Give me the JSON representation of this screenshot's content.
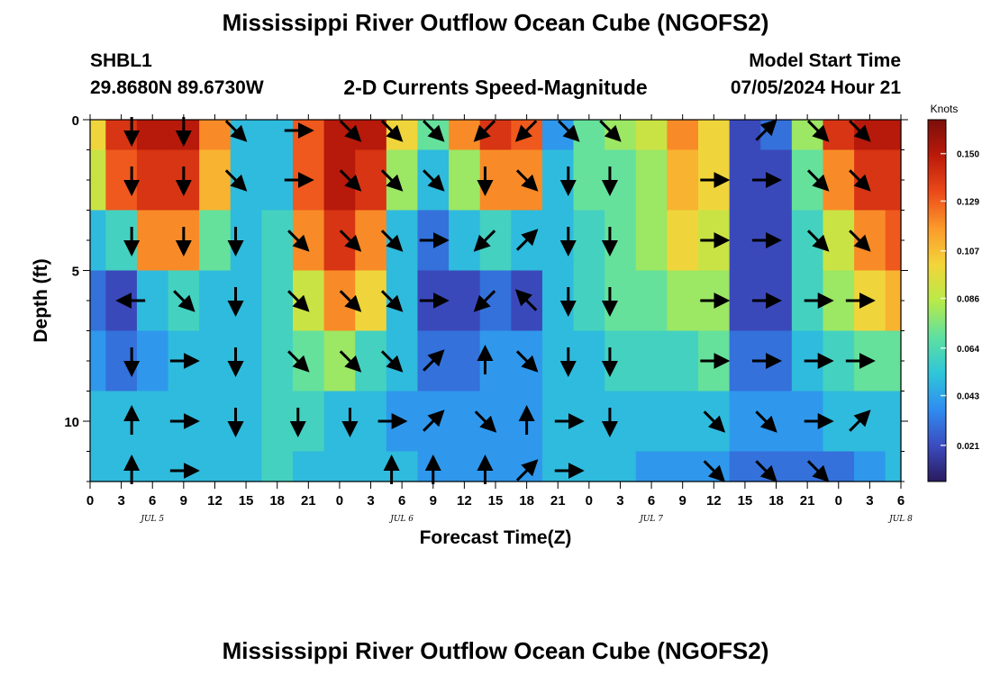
{
  "page": {
    "title": "Mississippi River Outflow Ocean Cube (NGOFS2)",
    "station_id": "SHBL1",
    "station_coords": "29.8680N  89.6730W",
    "subtitle": "2-D Currents Speed-Magnitude",
    "model_start_label": "Model Start Time",
    "model_start_value": "07/05/2024 Hour 21",
    "footer_title": "Mississippi River Outflow Ocean Cube (NGOFS2)"
  },
  "chart_data": {
    "type": "heatmap",
    "title": "2-D Currents Speed-Magnitude",
    "xlabel": "Forecast Time(Z)",
    "ylabel": "Depth (ft)",
    "colorbar_label": "Knots",
    "x_tick_labels": [
      "0",
      "3",
      "6",
      "9",
      "12",
      "15",
      "18",
      "21",
      "0",
      "3",
      "6",
      "9",
      "12",
      "15",
      "18",
      "21",
      "0",
      "3",
      "6",
      "9",
      "12",
      "15",
      "18",
      "21",
      "0",
      "3",
      "6"
    ],
    "date_labels": [
      "JUL 5",
      "JUL 6",
      "JUL 7",
      "JUL 8"
    ],
    "date_label_hours": [
      6,
      30,
      54,
      78
    ],
    "x_range_hours": [
      0,
      78
    ],
    "y_ticks": [
      0,
      5,
      10
    ],
    "y_range": [
      0,
      12
    ],
    "colorbar_ticks": [
      "0.021",
      "0.043",
      "0.064",
      "0.086",
      "0.107",
      "0.129",
      "0.150"
    ],
    "colorbar_range": [
      0.005,
      0.165
    ],
    "colors": [
      "#2a1a5e",
      "#3b4cc0",
      "#2f8df0",
      "#2fc6d8",
      "#5fe0a0",
      "#b8ea48",
      "#f3d43a",
      "#fb9a2a",
      "#ec4a1a",
      "#bb1a0a",
      "#7a0f0a"
    ],
    "depth_levels_ft": [
      0,
      2,
      4,
      6,
      8,
      10,
      12
    ],
    "time_hours": [
      0,
      3,
      6,
      9,
      12,
      15,
      18,
      21,
      24,
      27,
      30,
      33,
      36,
      39,
      42,
      45,
      48,
      51,
      54,
      57,
      60,
      63,
      66,
      69,
      72,
      75,
      78
    ],
    "speed_knots": [
      [
        0.1,
        0.14,
        0.15,
        0.15,
        0.12,
        0.05,
        0.05,
        0.13,
        0.15,
        0.15,
        0.1,
        0.07,
        0.12,
        0.14,
        0.13,
        0.04,
        0.07,
        0.08,
        0.09,
        0.12,
        0.1,
        0.02,
        0.03,
        0.08,
        0.14,
        0.15,
        0.15
      ],
      [
        0.09,
        0.13,
        0.14,
        0.14,
        0.11,
        0.05,
        0.05,
        0.13,
        0.15,
        0.14,
        0.08,
        0.05,
        0.08,
        0.12,
        0.12,
        0.05,
        0.07,
        0.07,
        0.08,
        0.11,
        0.1,
        0.02,
        0.02,
        0.07,
        0.12,
        0.14,
        0.14
      ],
      [
        0.05,
        0.06,
        0.12,
        0.12,
        0.07,
        0.05,
        0.06,
        0.12,
        0.14,
        0.12,
        0.05,
        0.03,
        0.05,
        0.06,
        0.05,
        0.05,
        0.06,
        0.07,
        0.08,
        0.1,
        0.09,
        0.02,
        0.02,
        0.06,
        0.09,
        0.12,
        0.13
      ],
      [
        0.03,
        0.02,
        0.05,
        0.06,
        0.05,
        0.05,
        0.06,
        0.09,
        0.12,
        0.1,
        0.05,
        0.02,
        0.02,
        0.03,
        0.02,
        0.05,
        0.06,
        0.07,
        0.07,
        0.08,
        0.08,
        0.02,
        0.02,
        0.06,
        0.08,
        0.1,
        0.11
      ],
      [
        0.04,
        0.03,
        0.04,
        0.05,
        0.05,
        0.05,
        0.06,
        0.07,
        0.08,
        0.06,
        0.05,
        0.03,
        0.03,
        0.04,
        0.04,
        0.05,
        0.05,
        0.06,
        0.06,
        0.06,
        0.07,
        0.03,
        0.03,
        0.05,
        0.06,
        0.07,
        0.07
      ],
      [
        0.05,
        0.05,
        0.05,
        0.05,
        0.05,
        0.05,
        0.06,
        0.06,
        0.05,
        0.05,
        0.04,
        0.04,
        0.04,
        0.04,
        0.04,
        0.05,
        0.05,
        0.05,
        0.05,
        0.05,
        0.05,
        0.04,
        0.04,
        0.04,
        0.05,
        0.05,
        0.05
      ],
      [
        0.05,
        0.05,
        0.05,
        0.05,
        0.05,
        0.05,
        0.06,
        0.05,
        0.05,
        0.05,
        0.05,
        0.04,
        0.04,
        0.04,
        0.04,
        0.05,
        0.05,
        0.05,
        0.04,
        0.04,
        0.04,
        0.03,
        0.03,
        0.03,
        0.03,
        0.04,
        0.05
      ]
    ],
    "vectors": [
      {
        "t": 4,
        "d": 0,
        "dir": "S"
      },
      {
        "t": 9,
        "d": 0,
        "dir": "S"
      },
      {
        "t": 14,
        "d": 0,
        "dir": "SE"
      },
      {
        "t": 20,
        "d": 0,
        "dir": "E"
      },
      {
        "t": 25,
        "d": 0,
        "dir": "SE"
      },
      {
        "t": 29,
        "d": 0,
        "dir": "SE"
      },
      {
        "t": 33,
        "d": 0,
        "dir": "SE"
      },
      {
        "t": 38,
        "d": 0,
        "dir": "SW"
      },
      {
        "t": 42,
        "d": 0,
        "dir": "SW"
      },
      {
        "t": 46,
        "d": 0,
        "dir": "SE"
      },
      {
        "t": 50,
        "d": 0,
        "dir": "SE"
      },
      {
        "t": 65,
        "d": 0,
        "dir": "NE"
      },
      {
        "t": 70,
        "d": 0,
        "dir": "SE"
      },
      {
        "t": 74,
        "d": 0,
        "dir": "SE"
      },
      {
        "t": 4,
        "d": 2,
        "dir": "S"
      },
      {
        "t": 9,
        "d": 2,
        "dir": "S"
      },
      {
        "t": 14,
        "d": 2,
        "dir": "SE"
      },
      {
        "t": 20,
        "d": 2,
        "dir": "E"
      },
      {
        "t": 25,
        "d": 2,
        "dir": "SE"
      },
      {
        "t": 29,
        "d": 2,
        "dir": "SE"
      },
      {
        "t": 33,
        "d": 2,
        "dir": "SE"
      },
      {
        "t": 38,
        "d": 2,
        "dir": "S"
      },
      {
        "t": 42,
        "d": 2,
        "dir": "SE"
      },
      {
        "t": 46,
        "d": 2,
        "dir": "S"
      },
      {
        "t": 50,
        "d": 2,
        "dir": "S"
      },
      {
        "t": 60,
        "d": 2,
        "dir": "E"
      },
      {
        "t": 65,
        "d": 2,
        "dir": "E"
      },
      {
        "t": 70,
        "d": 2,
        "dir": "SE"
      },
      {
        "t": 74,
        "d": 2,
        "dir": "SE"
      },
      {
        "t": 4,
        "d": 4,
        "dir": "S"
      },
      {
        "t": 9,
        "d": 4,
        "dir": "S"
      },
      {
        "t": 14,
        "d": 4,
        "dir": "S"
      },
      {
        "t": 20,
        "d": 4,
        "dir": "SE"
      },
      {
        "t": 25,
        "d": 4,
        "dir": "SE"
      },
      {
        "t": 29,
        "d": 4,
        "dir": "SE"
      },
      {
        "t": 33,
        "d": 4,
        "dir": "E"
      },
      {
        "t": 38,
        "d": 4,
        "dir": "SW"
      },
      {
        "t": 42,
        "d": 4,
        "dir": "NE"
      },
      {
        "t": 46,
        "d": 4,
        "dir": "S"
      },
      {
        "t": 50,
        "d": 4,
        "dir": "S"
      },
      {
        "t": 60,
        "d": 4,
        "dir": "E"
      },
      {
        "t": 65,
        "d": 4,
        "dir": "E"
      },
      {
        "t": 70,
        "d": 4,
        "dir": "SE"
      },
      {
        "t": 74,
        "d": 4,
        "dir": "SE"
      },
      {
        "t": 4,
        "d": 6,
        "dir": "W"
      },
      {
        "t": 9,
        "d": 6,
        "dir": "SE"
      },
      {
        "t": 14,
        "d": 6,
        "dir": "S"
      },
      {
        "t": 20,
        "d": 6,
        "dir": "SE"
      },
      {
        "t": 25,
        "d": 6,
        "dir": "SE"
      },
      {
        "t": 29,
        "d": 6,
        "dir": "SE"
      },
      {
        "t": 33,
        "d": 6,
        "dir": "E"
      },
      {
        "t": 38,
        "d": 6,
        "dir": "SW"
      },
      {
        "t": 42,
        "d": 6,
        "dir": "NW"
      },
      {
        "t": 46,
        "d": 6,
        "dir": "S"
      },
      {
        "t": 50,
        "d": 6,
        "dir": "S"
      },
      {
        "t": 60,
        "d": 6,
        "dir": "E"
      },
      {
        "t": 65,
        "d": 6,
        "dir": "E"
      },
      {
        "t": 70,
        "d": 6,
        "dir": "E"
      },
      {
        "t": 74,
        "d": 6,
        "dir": "E"
      },
      {
        "t": 4,
        "d": 8,
        "dir": "S"
      },
      {
        "t": 9,
        "d": 8,
        "dir": "E"
      },
      {
        "t": 14,
        "d": 8,
        "dir": "S"
      },
      {
        "t": 20,
        "d": 8,
        "dir": "SE"
      },
      {
        "t": 25,
        "d": 8,
        "dir": "SE"
      },
      {
        "t": 29,
        "d": 8,
        "dir": "SE"
      },
      {
        "t": 33,
        "d": 8,
        "dir": "NE"
      },
      {
        "t": 38,
        "d": 8,
        "dir": "N"
      },
      {
        "t": 42,
        "d": 8,
        "dir": "SE"
      },
      {
        "t": 46,
        "d": 8,
        "dir": "S"
      },
      {
        "t": 50,
        "d": 8,
        "dir": "S"
      },
      {
        "t": 60,
        "d": 8,
        "dir": "E"
      },
      {
        "t": 65,
        "d": 8,
        "dir": "E"
      },
      {
        "t": 70,
        "d": 8,
        "dir": "E"
      },
      {
        "t": 74,
        "d": 8,
        "dir": "E"
      },
      {
        "t": 4,
        "d": 10,
        "dir": "N"
      },
      {
        "t": 9,
        "d": 10,
        "dir": "E"
      },
      {
        "t": 14,
        "d": 10,
        "dir": "S"
      },
      {
        "t": 20,
        "d": 10,
        "dir": "S"
      },
      {
        "t": 25,
        "d": 10,
        "dir": "S"
      },
      {
        "t": 29,
        "d": 10,
        "dir": "E"
      },
      {
        "t": 33,
        "d": 10,
        "dir": "NE"
      },
      {
        "t": 38,
        "d": 10,
        "dir": "SE"
      },
      {
        "t": 42,
        "d": 10,
        "dir": "N"
      },
      {
        "t": 46,
        "d": 10,
        "dir": "E"
      },
      {
        "t": 50,
        "d": 10,
        "dir": "S"
      },
      {
        "t": 60,
        "d": 10,
        "dir": "SE"
      },
      {
        "t": 65,
        "d": 10,
        "dir": "SE"
      },
      {
        "t": 70,
        "d": 10,
        "dir": "E"
      },
      {
        "t": 74,
        "d": 10,
        "dir": "NE"
      },
      {
        "t": 4,
        "d": 12,
        "dir": "N"
      },
      {
        "t": 9,
        "d": 12,
        "dir": "E"
      },
      {
        "t": 29,
        "d": 12,
        "dir": "N"
      },
      {
        "t": 33,
        "d": 12,
        "dir": "N"
      },
      {
        "t": 38,
        "d": 12,
        "dir": "N"
      },
      {
        "t": 42,
        "d": 12,
        "dir": "NE"
      },
      {
        "t": 46,
        "d": 12,
        "dir": "E"
      },
      {
        "t": 60,
        "d": 12,
        "dir": "SE"
      },
      {
        "t": 65,
        "d": 12,
        "dir": "SE"
      },
      {
        "t": 70,
        "d": 12,
        "dir": "SE"
      }
    ]
  }
}
